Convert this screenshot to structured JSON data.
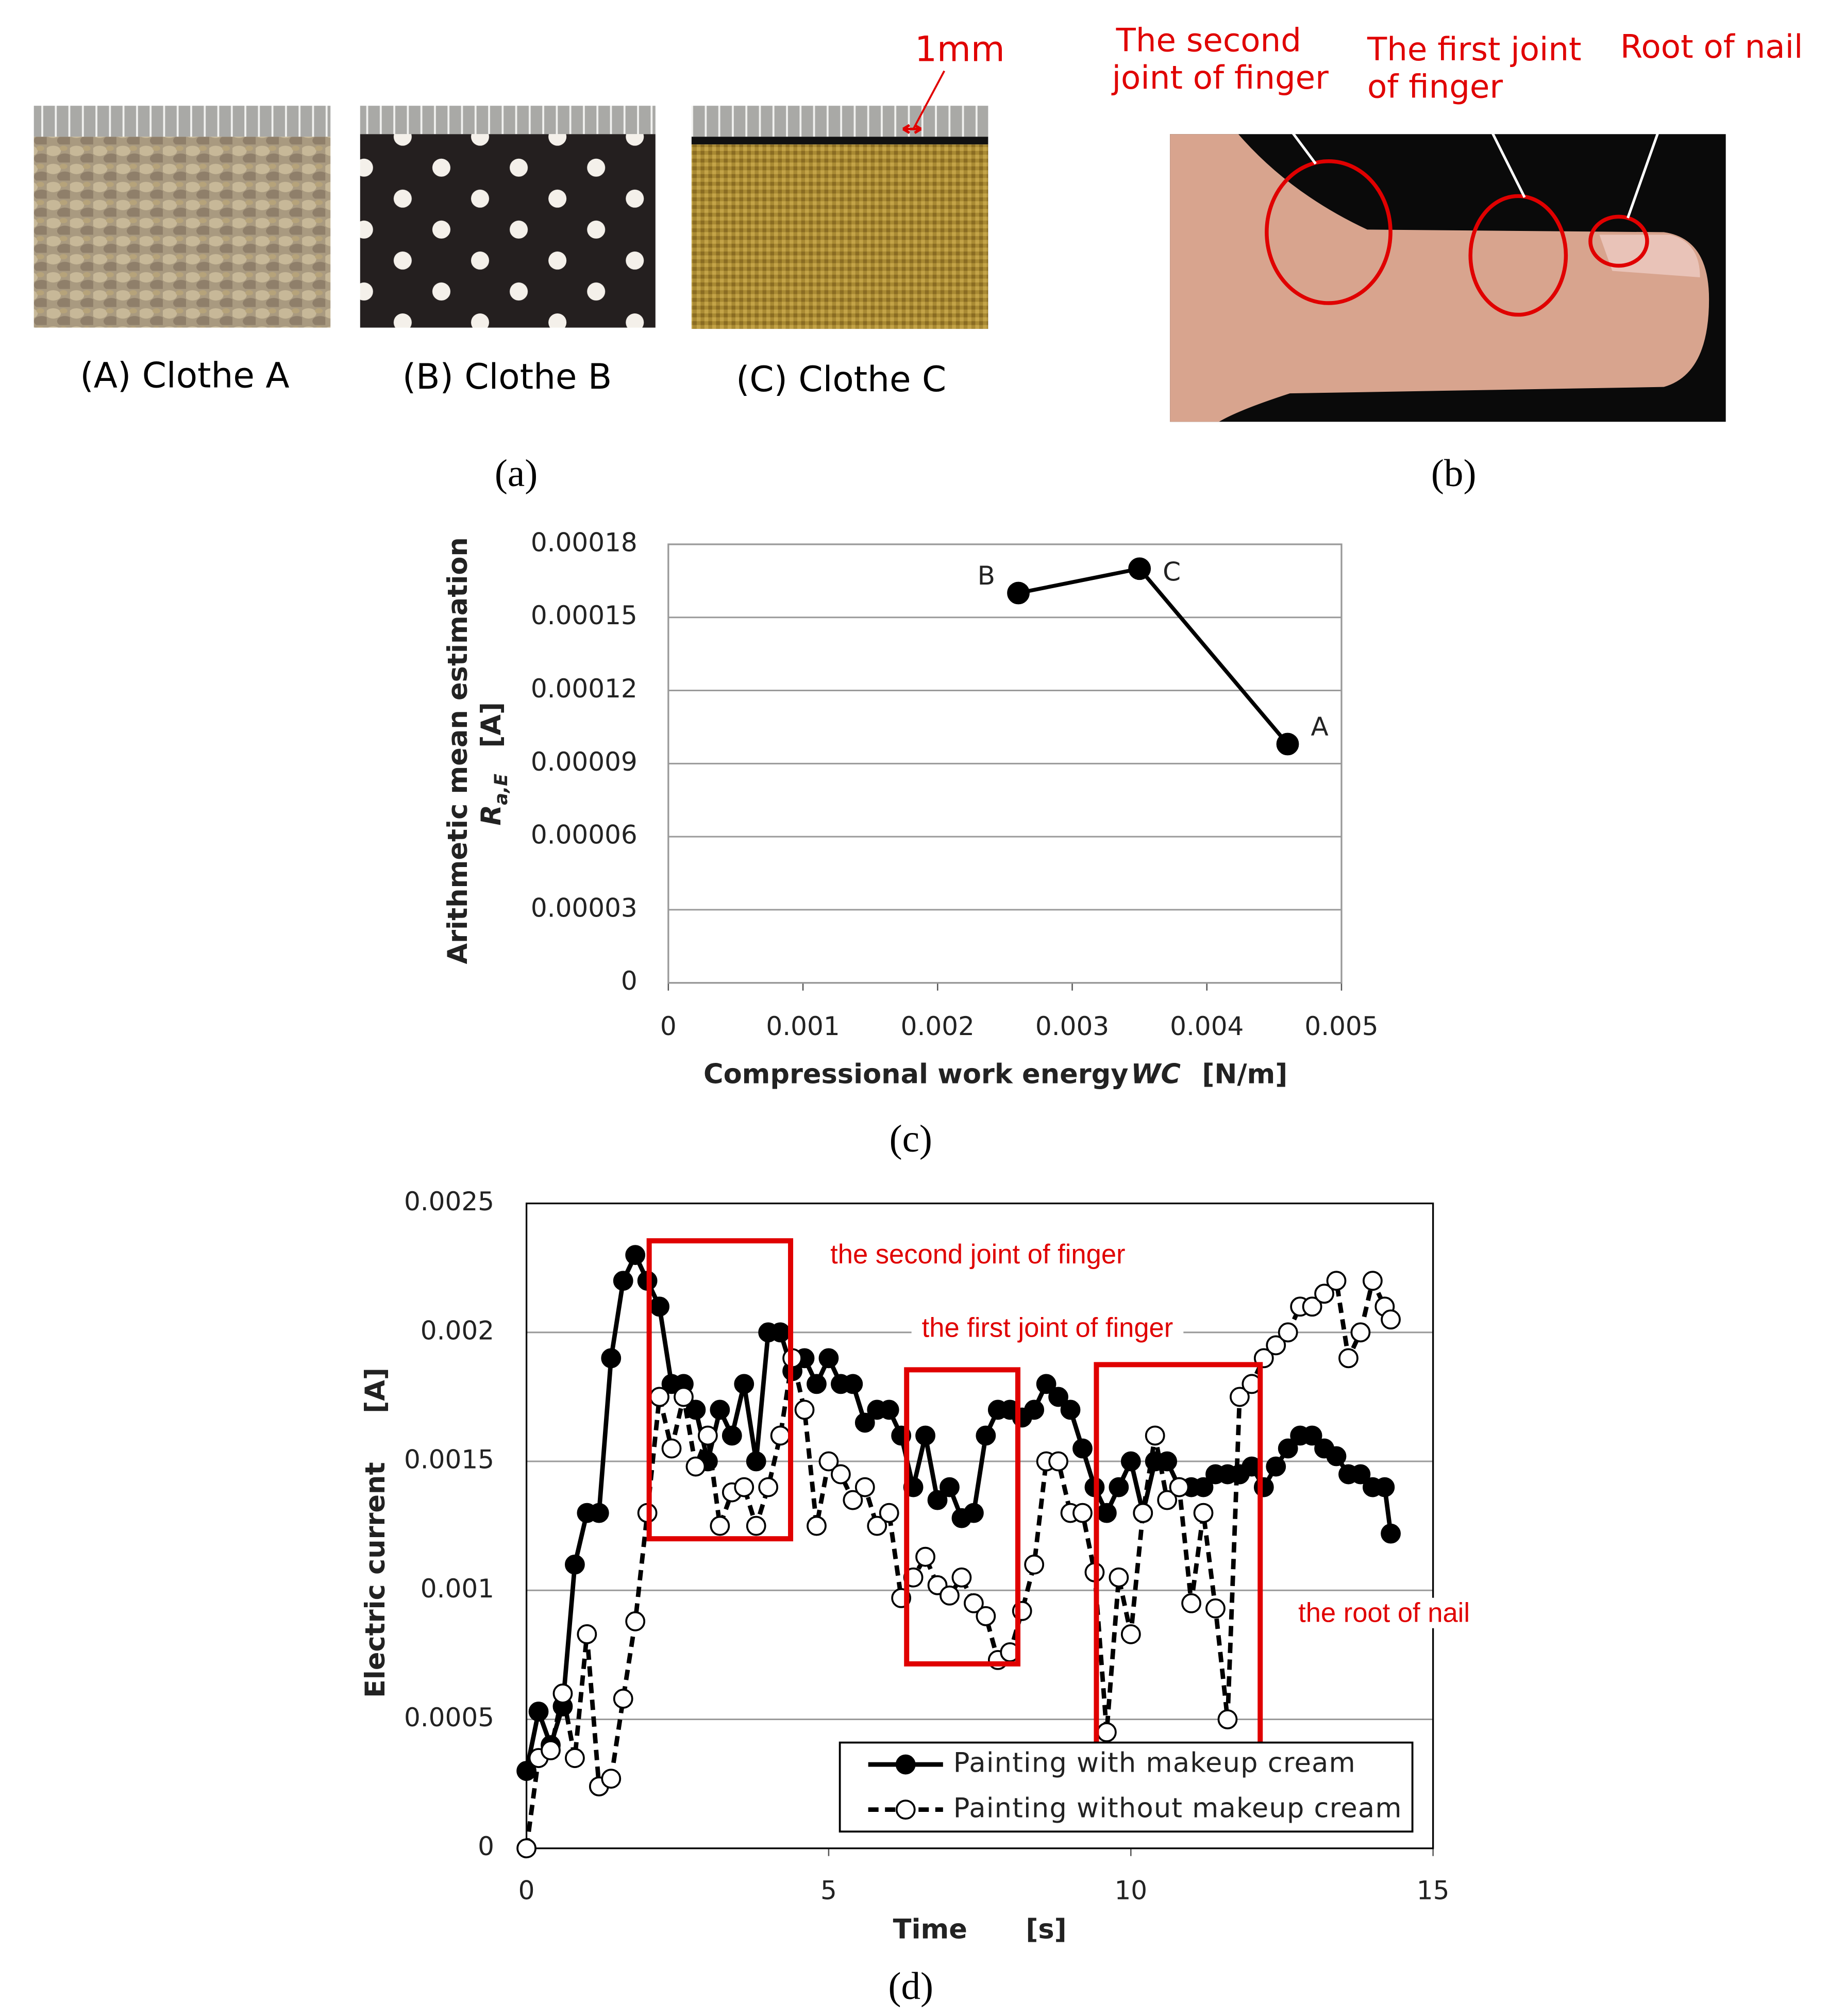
{
  "panel_a": {
    "captions": [
      "(A) Clothe A",
      "(B) Clothe B",
      "(C) Clothe C"
    ],
    "scale_label": "1mm",
    "label": "(a)"
  },
  "panel_b": {
    "annotations": [
      [
        "The second",
        "joint of finger"
      ],
      [
        "The first joint",
        "of finger"
      ],
      [
        "Root of nail"
      ]
    ],
    "label": "(b)"
  },
  "chart_data": [
    {
      "type": "line",
      "label": "(c)",
      "x_label": {
        "text": "Compressional work energy",
        "symbol": "WC",
        "unit": "[N/m]"
      },
      "y_label": {
        "text": "Arithmetic mean estimation",
        "symbol": "R",
        "subscript": "a,E",
        "unit": "[A]"
      },
      "x": [
        0.0026,
        0.0035,
        0.0046
      ],
      "values": [
        0.00016,
        0.00017,
        9.8e-05
      ],
      "point_labels": [
        "B",
        "C",
        "A"
      ],
      "color": "#000000",
      "xlim": [
        0,
        0.005
      ],
      "xticks": [
        0,
        0.001,
        0.002,
        0.003,
        0.004,
        0.005
      ],
      "ylim": [
        0,
        0.00018
      ],
      "yticks": [
        0,
        3e-05,
        6e-05,
        9e-05,
        0.00012,
        0.00015,
        0.00018
      ],
      "grid": true
    },
    {
      "type": "line",
      "label": "(d)",
      "x_label": {
        "text": "Time",
        "unit": "[s]"
      },
      "y_label": {
        "text": "Electric current",
        "unit": "[A]"
      },
      "x": [
        0,
        0.2,
        0.4,
        0.6,
        0.8,
        1.0,
        1.2,
        1.4,
        1.6,
        1.8,
        2.0,
        2.2,
        2.4,
        2.6,
        2.8,
        3.0,
        3.2,
        3.4,
        3.6,
        3.8,
        4.0,
        4.2,
        4.4,
        4.6,
        4.8,
        5.0,
        5.2,
        5.4,
        5.6,
        5.8,
        6.0,
        6.2,
        6.4,
        6.6,
        6.8,
        7.0,
        7.2,
        7.4,
        7.6,
        7.8,
        8.0,
        8.2,
        8.4,
        8.6,
        8.8,
        9.0,
        9.2,
        9.4,
        9.6,
        9.8,
        10.0,
        10.2,
        10.4,
        10.6,
        10.8,
        11.0,
        11.2,
        11.4,
        11.6,
        11.8,
        12.0,
        12.2,
        12.4,
        12.6,
        12.8,
        13.0,
        13.2,
        13.4,
        13.6,
        13.8,
        14.0,
        14.2,
        14.3
      ],
      "series": [
        {
          "name": "Painting with makeup cream",
          "color": "#000000",
          "marker_fill": "#000000",
          "line_style": "solid",
          "values": [
            0.0003,
            0.00053,
            0.0004,
            0.00055,
            0.0011,
            0.0013,
            0.0013,
            0.0019,
            0.0022,
            0.0023,
            0.0022,
            0.0021,
            0.0018,
            0.0018,
            0.0017,
            0.0015,
            0.0017,
            0.0016,
            0.0018,
            0.0015,
            0.002,
            0.002,
            0.00185,
            0.0019,
            0.0018,
            0.0019,
            0.0018,
            0.0018,
            0.00165,
            0.0017,
            0.0017,
            0.0016,
            0.0014,
            0.0016,
            0.00135,
            0.0014,
            0.00128,
            0.0013,
            0.0016,
            0.0017,
            0.0017,
            0.00167,
            0.0017,
            0.0018,
            0.00175,
            0.0017,
            0.00155,
            0.0014,
            0.0013,
            0.0014,
            0.0015,
            0.0013,
            0.0015,
            0.0015,
            0.0014,
            0.0014,
            0.0014,
            0.00145,
            0.00145,
            0.00145,
            0.00148,
            0.0014,
            0.00148,
            0.00155,
            0.0016,
            0.0016,
            0.00155,
            0.00152,
            0.00145,
            0.00145,
            0.0014,
            0.0014,
            0.00122
          ]
        },
        {
          "name": "Painting without makeup cream",
          "color": "#000000",
          "marker_fill": "#ffffff",
          "line_style": "dashed",
          "values": [
            0,
            0.00035,
            0.00038,
            0.0006,
            0.00035,
            0.00083,
            0.00024,
            0.00027,
            0.00058,
            0.00088,
            0.0013,
            0.00175,
            0.00155,
            0.00175,
            0.00148,
            0.0016,
            0.00125,
            0.00138,
            0.0014,
            0.00125,
            0.0014,
            0.0016,
            0.0019,
            0.0017,
            0.00125,
            0.0015,
            0.00145,
            0.00135,
            0.0014,
            0.00125,
            0.0013,
            0.00097,
            0.00105,
            0.00113,
            0.00102,
            0.00098,
            0.00105,
            0.00095,
            0.0009,
            0.00073,
            0.00076,
            0.00092,
            0.0011,
            0.0015,
            0.0015,
            0.0013,
            0.0013,
            0.00107,
            0.00045,
            0.00105,
            0.00083,
            0.0013,
            0.0016,
            0.00135,
            0.0014,
            0.00095,
            0.0013,
            0.00093,
            0.0005,
            0.00175,
            0.0018,
            0.0019,
            0.00195,
            0.002,
            0.0021,
            0.0021,
            0.00215,
            0.0022,
            0.0019,
            0.002,
            0.0022,
            0.0021,
            0.00205
          ]
        }
      ],
      "annotations": [
        {
          "text": "the second joint of finger",
          "region": {
            "x": [
              2.03,
              4.37
            ],
            "y": [
              0.0012,
              0.002355
            ]
          }
        },
        {
          "text": "the first joint of finger",
          "region": {
            "x": [
              6.29,
              8.13
            ],
            "y": [
              0.000715,
              0.001855
            ]
          }
        },
        {
          "text": "the root of nail",
          "region": {
            "x": [
              9.43,
              12.14
            ],
            "y": [
              0.00038,
              0.001875
            ]
          }
        }
      ],
      "legend": "lower right",
      "xlim": [
        0,
        15
      ],
      "xticks": [
        0,
        5,
        10,
        15
      ],
      "ylim": [
        0,
        0.0025
      ],
      "yticks": [
        0,
        0.0005,
        0.001,
        0.0015,
        0.002,
        0.0025
      ],
      "grid": true
    }
  ]
}
